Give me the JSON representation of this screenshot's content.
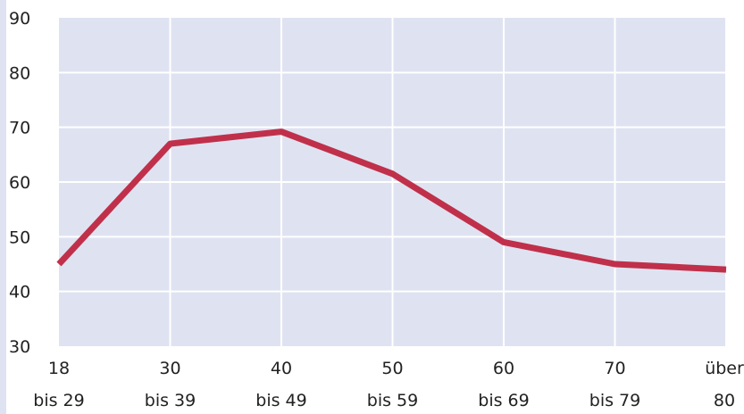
{
  "chart_data": {
    "type": "line",
    "categories": [
      [
        "18",
        "bis 29"
      ],
      [
        "30",
        "bis 39"
      ],
      [
        "40",
        "bis 49"
      ],
      [
        "50",
        "bis 59"
      ],
      [
        "60",
        "bis 69"
      ],
      [
        "70",
        "bis 79"
      ],
      [
        "über",
        "80"
      ]
    ],
    "series": [
      {
        "values": [
          45,
          67,
          69.2,
          61.5,
          49,
          45,
          44
        ]
      }
    ],
    "yticks": [
      "30",
      "40",
      "50",
      "60",
      "70",
      "80",
      "90"
    ],
    "ylim": [
      30,
      90
    ],
    "grid": true,
    "colors": {
      "plot_background": "#dfe3f1",
      "grid": "#ffffff",
      "line": "#c0304a",
      "left_strip": "#dfe3f1"
    }
  }
}
